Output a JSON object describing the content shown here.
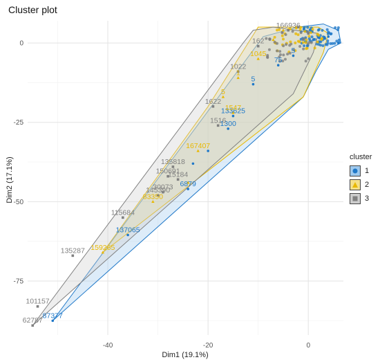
{
  "chart_data": {
    "type": "scatter",
    "title": "Cluster plot",
    "xlabel": "Dim1 (19.1%)",
    "ylabel": "Dim2 (17.1%)",
    "xlim": [
      -56,
      7
    ],
    "ylim": [
      -92,
      7
    ],
    "x_ticks": [
      -40,
      -20,
      0
    ],
    "y_ticks": [
      0,
      -25,
      -50,
      -75
    ],
    "legend_title": "cluster",
    "legend_position": "right",
    "grid": true,
    "series": [
      {
        "name": "1",
        "color": "#1f78c8",
        "fill": "#9ec9ee",
        "hull": [
          [
            -51,
            -87.5
          ],
          [
            -1,
            -17
          ],
          [
            1.5,
            -9
          ],
          [
            4,
            -2
          ],
          [
            6.5,
            0
          ],
          [
            6,
            4
          ],
          [
            3,
            6
          ],
          [
            -2,
            5
          ],
          [
            -9,
            2
          ]
        ],
        "points": [
          {
            "x": -51,
            "y": -87.5,
            "label": "87377"
          },
          {
            "x": -36,
            "y": -60.5,
            "label": "137065"
          },
          {
            "x": -24,
            "y": -46,
            "label": "6879"
          },
          {
            "x": -23,
            "y": -38,
            "label": ""
          },
          {
            "x": -20,
            "y": -34,
            "label": ""
          },
          {
            "x": -16,
            "y": -27,
            "label": "1300"
          },
          {
            "x": -15,
            "y": -23,
            "label": "133625"
          },
          {
            "x": -11,
            "y": -13,
            "label": "5"
          },
          {
            "x": -6,
            "y": -7,
            "label": "75"
          },
          {
            "x": -3,
            "y": -4,
            "label": "5"
          },
          {
            "x": 1,
            "y": 1,
            "label": ""
          },
          {
            "x": 4,
            "y": 2,
            "label": ""
          },
          {
            "x": 6,
            "y": 0,
            "label": ""
          }
        ]
      },
      {
        "name": "2",
        "color": "#e8b800",
        "fill": "#f4e08a",
        "hull": [
          [
            -41,
            -66
          ],
          [
            -1,
            -17
          ],
          [
            3,
            -3
          ],
          [
            4,
            3
          ],
          [
            2,
            5
          ],
          [
            -10,
            5
          ],
          [
            -20,
            -20
          ]
        ],
        "points": [
          {
            "x": -41,
            "y": -66,
            "label": "159265"
          },
          {
            "x": -31,
            "y": -50,
            "label": "83350"
          },
          {
            "x": -24,
            "y": -44,
            "label": ""
          },
          {
            "x": -22,
            "y": -34,
            "label": "167407"
          },
          {
            "x": -17,
            "y": -17,
            "label": "5"
          },
          {
            "x": -15,
            "y": -22,
            "label": "1547"
          },
          {
            "x": -14,
            "y": -11,
            "label": "1"
          },
          {
            "x": -10,
            "y": -5,
            "label": "1045"
          },
          {
            "x": -7,
            "y": 1,
            "label": ""
          },
          {
            "x": -5,
            "y": 4,
            "label": ""
          }
        ]
      },
      {
        "name": "3",
        "color": "#808080",
        "fill": "#cdcdcd",
        "hull": [
          [
            -55,
            -89
          ],
          [
            -3,
            -16
          ],
          [
            1,
            -3
          ],
          [
            2,
            3
          ],
          [
            -7,
            5
          ],
          [
            -11,
            4
          ],
          [
            -13,
            0
          ]
        ],
        "points": [
          {
            "x": -55,
            "y": -89,
            "label": "62787"
          },
          {
            "x": -54,
            "y": -83,
            "label": "101157"
          },
          {
            "x": -47,
            "y": -67,
            "label": "135287"
          },
          {
            "x": -37,
            "y": -55,
            "label": "115684"
          },
          {
            "x": -30,
            "y": -48,
            "label": "145390"
          },
          {
            "x": -29,
            "y": -47,
            "label": "30073"
          },
          {
            "x": -28,
            "y": -42,
            "label": "150691"
          },
          {
            "x": -27,
            "y": -39,
            "label": "135818"
          },
          {
            "x": -26,
            "y": -43,
            "label": "15184"
          },
          {
            "x": -19,
            "y": -20,
            "label": "1622"
          },
          {
            "x": -18,
            "y": -26,
            "label": "1516"
          },
          {
            "x": -14,
            "y": -9,
            "label": "1022"
          },
          {
            "x": -10,
            "y": -1,
            "label": "162"
          },
          {
            "x": -4,
            "y": 4,
            "label": "166936"
          },
          {
            "x": -2,
            "y": 5,
            "label": ""
          },
          {
            "x": 0,
            "y": 3,
            "label": ""
          }
        ]
      }
    ]
  }
}
